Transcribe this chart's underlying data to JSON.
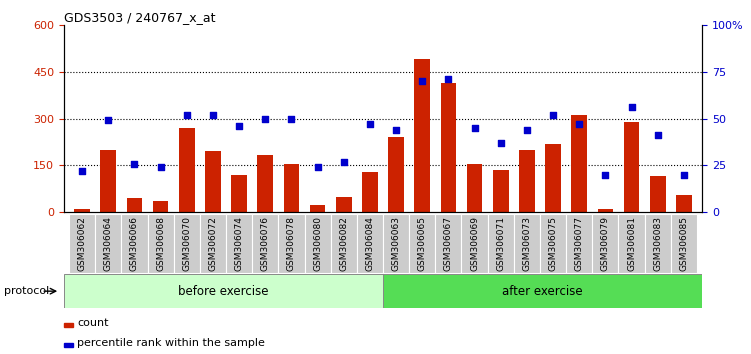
{
  "title": "GDS3503 / 240767_x_at",
  "categories": [
    "GSM306062",
    "GSM306064",
    "GSM306066",
    "GSM306068",
    "GSM306070",
    "GSM306072",
    "GSM306074",
    "GSM306076",
    "GSM306078",
    "GSM306080",
    "GSM306082",
    "GSM306084",
    "GSM306063",
    "GSM306065",
    "GSM306067",
    "GSM306069",
    "GSM306071",
    "GSM306073",
    "GSM306075",
    "GSM306077",
    "GSM306079",
    "GSM306081",
    "GSM306083",
    "GSM306085"
  ],
  "count": [
    10,
    200,
    45,
    35,
    270,
    195,
    120,
    185,
    155,
    25,
    50,
    130,
    240,
    490,
    415,
    155,
    135,
    200,
    220,
    310,
    10,
    290,
    115,
    55
  ],
  "percentile": [
    22,
    49,
    26,
    24,
    52,
    52,
    46,
    50,
    50,
    24,
    27,
    47,
    44,
    70,
    71,
    45,
    37,
    44,
    52,
    47,
    20,
    56,
    41,
    20
  ],
  "before_count": 12,
  "after_count": 12,
  "before_label": "before exercise",
  "after_label": "after exercise",
  "protocol_label": "protocol",
  "bar_color": "#cc2200",
  "dot_color": "#0000cc",
  "left_ylim": [
    0,
    600
  ],
  "left_yticks": [
    0,
    150,
    300,
    450,
    600
  ],
  "right_ylim": [
    0,
    100
  ],
  "right_yticks": [
    0,
    25,
    50,
    75,
    100
  ],
  "right_yticklabels": [
    "0",
    "25",
    "50",
    "75",
    "100%"
  ],
  "before_color": "#ccffcc",
  "after_color": "#55dd55",
  "legend_count_label": "count",
  "legend_pct_label": "percentile rank within the sample"
}
